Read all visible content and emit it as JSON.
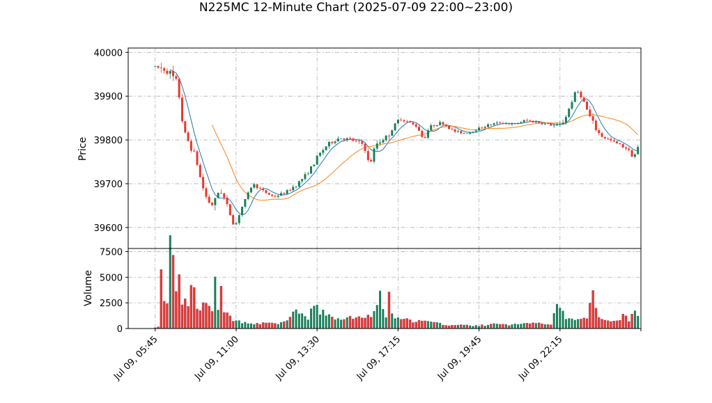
{
  "chart_data": {
    "type": "candlestick",
    "title": "N225MC 12-Minute Chart (2025-07-09 22:00~23:00)",
    "price_panel": {
      "ylabel": "Price",
      "ylim": [
        39552,
        40010
      ],
      "yticks": [
        39600,
        39700,
        39800,
        39900,
        40000
      ],
      "grid": true
    },
    "volume_panel": {
      "ylabel": "Volume",
      "ylim": [
        0,
        7800
      ],
      "yticks": [
        0,
        2500,
        5000,
        7500
      ],
      "grid": true
    },
    "x_range": [
      -9,
      162
    ],
    "x_ticks": [
      {
        "i": 0,
        "label": "Jul 09, 05:45"
      },
      {
        "i": 27,
        "label": "Jul 09, 11:00"
      },
      {
        "i": 54,
        "label": "Jul 09, 13:30"
      },
      {
        "i": 81,
        "label": "Jul 09, 17:15"
      },
      {
        "i": 108,
        "label": "Jul 09, 19:45"
      },
      {
        "i": 135,
        "label": "Jul 09, 22:15"
      },
      {
        "i": 162,
        "label": ""
      }
    ],
    "bar_count": 162,
    "colors": {
      "up": "#1a7f5a",
      "down": "#e8392f",
      "ma_short": "#1f77b4",
      "ma_long": "#ff7f0e",
      "grid": "#b0b0b0",
      "vol_down": "#8b3a62"
    },
    "price_anchors": [
      [
        0,
        39968
      ],
      [
        4,
        39960
      ],
      [
        6,
        39945
      ],
      [
        8,
        39930
      ],
      [
        9,
        39870
      ],
      [
        10,
        39820
      ],
      [
        12,
        39790
      ],
      [
        14,
        39760
      ],
      [
        16,
        39700
      ],
      [
        18,
        39660
      ],
      [
        20,
        39650
      ],
      [
        22,
        39690
      ],
      [
        24,
        39660
      ],
      [
        26,
        39620
      ],
      [
        27,
        39600
      ],
      [
        29,
        39640
      ],
      [
        31,
        39670
      ],
      [
        33,
        39700
      ],
      [
        36,
        39685
      ],
      [
        40,
        39670
      ],
      [
        44,
        39680
      ],
      [
        48,
        39700
      ],
      [
        52,
        39730
      ],
      [
        55,
        39765
      ],
      [
        58,
        39790
      ],
      [
        62,
        39805
      ],
      [
        66,
        39800
      ],
      [
        70,
        39790
      ],
      [
        72,
        39740
      ],
      [
        74,
        39790
      ],
      [
        78,
        39810
      ],
      [
        80,
        39830
      ],
      [
        82,
        39850
      ],
      [
        85,
        39840
      ],
      [
        88,
        39830
      ],
      [
        90,
        39800
      ],
      [
        92,
        39830
      ],
      [
        96,
        39840
      ],
      [
        100,
        39820
      ],
      [
        104,
        39815
      ],
      [
        108,
        39825
      ],
      [
        112,
        39835
      ],
      [
        116,
        39840
      ],
      [
        120,
        39835
      ],
      [
        124,
        39845
      ],
      [
        128,
        39840
      ],
      [
        132,
        39835
      ],
      [
        135,
        39830
      ],
      [
        137,
        39845
      ],
      [
        139,
        39880
      ],
      [
        141,
        39915
      ],
      [
        143,
        39895
      ],
      [
        145,
        39860
      ],
      [
        147,
        39830
      ],
      [
        149,
        39810
      ],
      [
        152,
        39800
      ],
      [
        155,
        39790
      ],
      [
        158,
        39780
      ],
      [
        160,
        39760
      ],
      [
        162,
        39790
      ]
    ],
    "volume_anchors": [
      [
        0,
        120
      ],
      [
        1,
        150
      ],
      [
        2,
        5100
      ],
      [
        3,
        2300
      ],
      [
        4,
        2200
      ],
      [
        5,
        7500
      ],
      [
        6,
        5900
      ],
      [
        7,
        3000
      ],
      [
        8,
        4500
      ],
      [
        9,
        2400
      ],
      [
        10,
        2600
      ],
      [
        11,
        2100
      ],
      [
        12,
        3500
      ],
      [
        13,
        3700
      ],
      [
        14,
        2000
      ],
      [
        15,
        1900
      ],
      [
        16,
        2100
      ],
      [
        17,
        2300
      ],
      [
        18,
        1800
      ],
      [
        19,
        1600
      ],
      [
        20,
        4400
      ],
      [
        21,
        2300
      ],
      [
        22,
        3300
      ],
      [
        23,
        1600
      ],
      [
        24,
        1300
      ],
      [
        25,
        1100
      ],
      [
        27,
        700
      ],
      [
        30,
        600
      ],
      [
        35,
        500
      ],
      [
        40,
        450
      ],
      [
        44,
        700
      ],
      [
        46,
        1600
      ],
      [
        48,
        1700
      ],
      [
        51,
        700
      ],
      [
        53,
        2800
      ],
      [
        55,
        1600
      ],
      [
        58,
        1200
      ],
      [
        62,
        900
      ],
      [
        66,
        1000
      ],
      [
        70,
        1100
      ],
      [
        73,
        1400
      ],
      [
        75,
        3100
      ],
      [
        77,
        900
      ],
      [
        78,
        3000
      ],
      [
        80,
        900
      ],
      [
        84,
        800
      ],
      [
        88,
        700
      ],
      [
        92,
        600
      ],
      [
        96,
        400
      ],
      [
        100,
        300
      ],
      [
        104,
        350
      ],
      [
        108,
        250
      ],
      [
        112,
        450
      ],
      [
        116,
        350
      ],
      [
        120,
        400
      ],
      [
        124,
        500
      ],
      [
        128,
        600
      ],
      [
        132,
        450
      ],
      [
        134,
        2400
      ],
      [
        136,
        1400
      ],
      [
        138,
        900
      ],
      [
        140,
        800
      ],
      [
        142,
        850
      ],
      [
        144,
        900
      ],
      [
        146,
        3300
      ],
      [
        148,
        1400
      ],
      [
        150,
        900
      ],
      [
        152,
        700
      ],
      [
        154,
        800
      ],
      [
        156,
        1300
      ],
      [
        158,
        900
      ],
      [
        160,
        1400
      ],
      [
        162,
        700
      ]
    ],
    "ma_short_period": 6,
    "ma_long_period": 20
  }
}
